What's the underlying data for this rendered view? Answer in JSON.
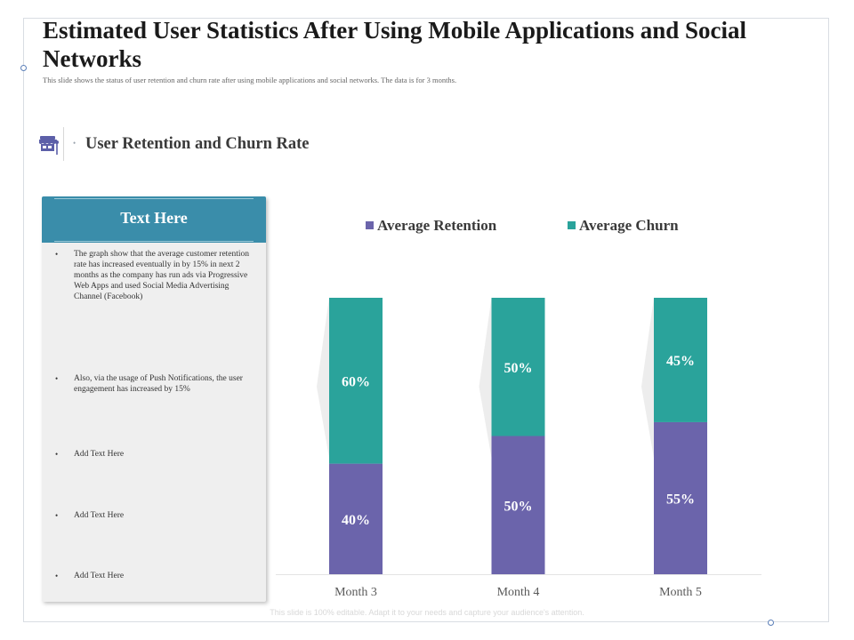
{
  "page": {
    "title": "Estimated User Statistics After Using Mobile Applications and Social Networks",
    "subtitle": "This slide shows the status of user retention and churn rate after using mobile applications and social networks. The data is for 3 months.",
    "section_title": "User Retention and Churn Rate",
    "footer": "This slide is 100% editable. Adapt it to your needs and capture your audience's attention."
  },
  "card": {
    "title": "Text Here",
    "bullets": [
      "The graph show that the average customer retention rate has increased eventually in by 15% in next 2 months as the company has run ads via Progressive Web Apps and used Social Media Advertising Channel (Facebook)",
      "Also, via the usage of Push Notifications, the user engagement has increased by 15%",
      "Add Text Here",
      "Add Text Here",
      "Add Text Here"
    ]
  },
  "colors": {
    "retention": "#6b64ab",
    "churn": "#2aa39b",
    "header": "#3a8daa",
    "icon": "#5c5fa8"
  },
  "icons": {
    "section": "store-icon"
  },
  "chart_data": {
    "type": "bar",
    "stacked": true,
    "categories": [
      "Month 3",
      "Month 4",
      "Month 5"
    ],
    "series": [
      {
        "name": "Average Retention",
        "values": [
          40,
          50,
          55
        ],
        "labels": [
          "40%",
          "50%",
          "55%"
        ]
      },
      {
        "name": "Average Churn",
        "values": [
          60,
          50,
          45
        ],
        "labels": [
          "60%",
          "50%",
          "45%"
        ]
      }
    ],
    "ylim": [
      0,
      100
    ],
    "legend_position": "top",
    "grid": false,
    "title": "",
    "xlabel": "",
    "ylabel": ""
  }
}
